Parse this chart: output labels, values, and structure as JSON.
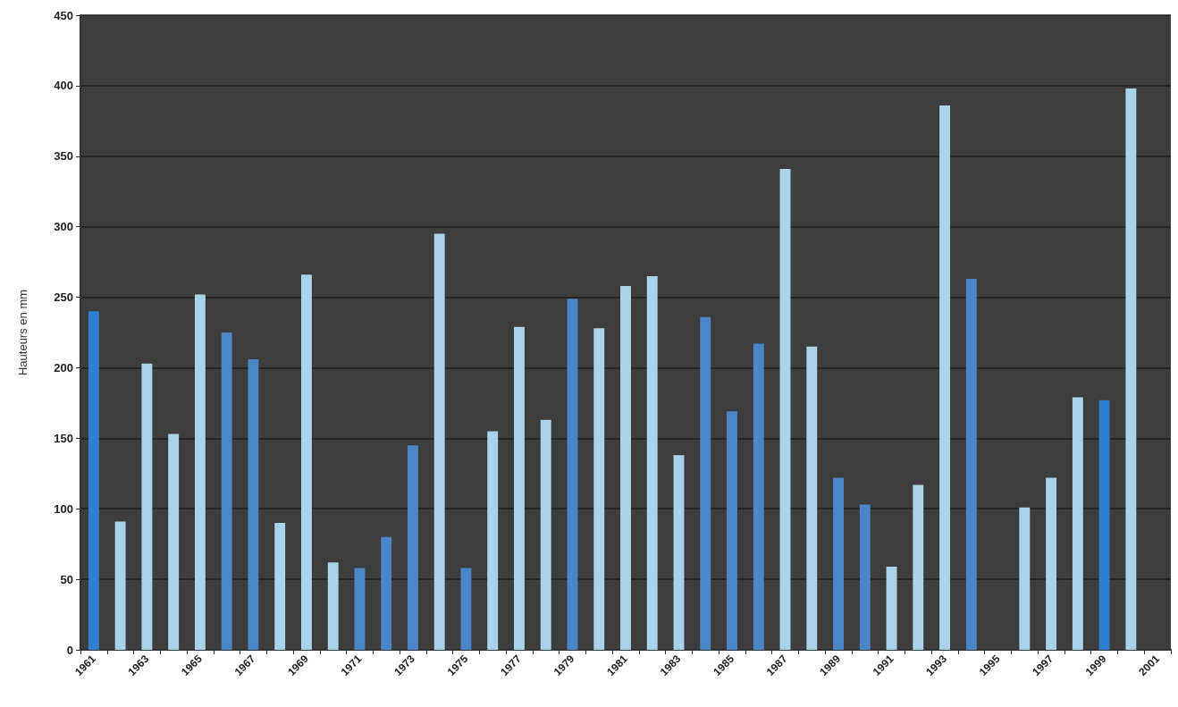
{
  "chart_data": {
    "type": "bar",
    "ylabel": "Hauteurs en mm",
    "categories": [
      "1961",
      null,
      "1963",
      null,
      "1965",
      null,
      "1967",
      null,
      "1969",
      null,
      "1971",
      null,
      "1973",
      null,
      "1975",
      null,
      "1977",
      null,
      "1979",
      null,
      "1981",
      null,
      "1983",
      null,
      "1985",
      null,
      "1987",
      null,
      "1989",
      null,
      "1991",
      null,
      "1993",
      null,
      "1995",
      null,
      "1997",
      null,
      "1999",
      null,
      "2001"
    ],
    "values": [
      240,
      91,
      203,
      153,
      252,
      225,
      206,
      90,
      266,
      62,
      58,
      80,
      145,
      295,
      58,
      155,
      229,
      163,
      249,
      228,
      258,
      265,
      138,
      236,
      169,
      217,
      341,
      215,
      122,
      103,
      59,
      117,
      386,
      263,
      null,
      101,
      122,
      179,
      177,
      398,
      null
    ],
    "colors": [
      "#2f7fd0",
      "#a9d3ea",
      "#a9d3ea",
      "#a9d3ea",
      "#a9d3ea",
      "#4a86c8",
      "#4a86c8",
      "#a9d3ea",
      "#a9d3ea",
      "#a9d3ea",
      "#4a86c8",
      "#4a86c8",
      "#4a86c8",
      "#a9d3ea",
      "#4a86c8",
      "#a9d3ea",
      "#a9d3ea",
      "#a9d3ea",
      "#4a86c8",
      "#a9d3ea",
      "#a9d3ea",
      "#a9d3ea",
      "#a9d3ea",
      "#4a86c8",
      "#4a86c8",
      "#4a86c8",
      "#a9d3ea",
      "#a9d3ea",
      "#4a86c8",
      "#4a86c8",
      "#a9d3ea",
      "#a9d3ea",
      "#a9d3ea",
      "#4a86c8",
      "#a9d3ea",
      "#a9d3ea",
      "#a9d3ea",
      "#a9d3ea",
      "#2f7fd0",
      "#a9d3ea",
      "#a9d3ea"
    ],
    "ylim": [
      0,
      450
    ],
    "yticks": [
      0,
      50,
      100,
      150,
      200,
      250,
      300,
      350,
      400,
      450
    ],
    "grid": "y"
  }
}
